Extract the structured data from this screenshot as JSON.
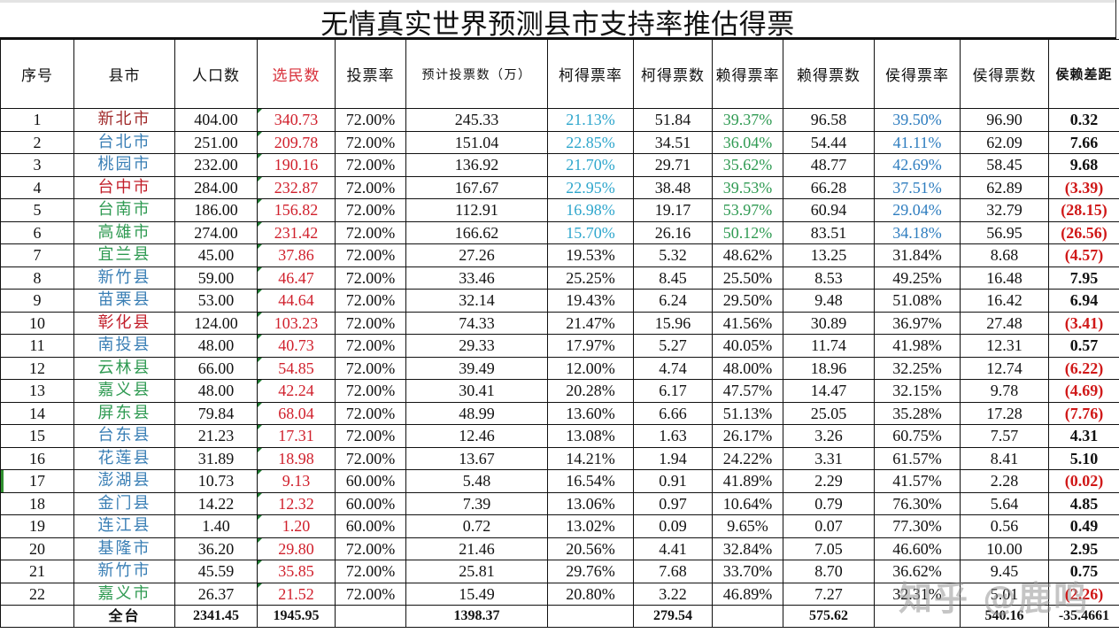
{
  "title": "无情真实世界预测县市支持率推估得票",
  "headers": [
    "序号",
    "县市",
    "人口数",
    "选民数",
    "投票率",
    "预计投票数（万）",
    "柯得票率",
    "柯得票数",
    "赖得票率",
    "赖得票数",
    "侯得票率",
    "侯得票数",
    "侯赖差距"
  ],
  "colors": {
    "ko_rate": "#2ea6cc",
    "lai_rate": "#2f9a52",
    "hou_rate": "#2e7dbf",
    "voters": "#d0202c",
    "negative_diff": "#d01818"
  },
  "rows": [
    {
      "seq": "1",
      "name": "新北市",
      "name_color": "maroon",
      "pop": "404.00",
      "voters": "340.73",
      "turnout": "72.00%",
      "votes": "245.33",
      "ko_rate": "21.13%",
      "ko_votes": "51.84",
      "lai_rate": "39.37%",
      "lai_votes": "96.58",
      "hou_rate": "39.50%",
      "hou_votes": "96.90",
      "diff": "0.32",
      "neg": false,
      "colored": true
    },
    {
      "seq": "2",
      "name": "台北市",
      "name_color": "blue",
      "pop": "251.00",
      "voters": "209.78",
      "turnout": "72.00%",
      "votes": "151.04",
      "ko_rate": "22.85%",
      "ko_votes": "34.51",
      "lai_rate": "36.04%",
      "lai_votes": "54.44",
      "hou_rate": "41.11%",
      "hou_votes": "62.09",
      "diff": "7.66",
      "neg": false,
      "colored": true
    },
    {
      "seq": "3",
      "name": "桃园市",
      "name_color": "blue",
      "pop": "232.00",
      "voters": "190.16",
      "turnout": "72.00%",
      "votes": "136.92",
      "ko_rate": "21.70%",
      "ko_votes": "29.71",
      "lai_rate": "35.62%",
      "lai_votes": "48.77",
      "hou_rate": "42.69%",
      "hou_votes": "58.45",
      "diff": "9.68",
      "neg": false,
      "colored": true
    },
    {
      "seq": "4",
      "name": "台中市",
      "name_color": "red",
      "pop": "284.00",
      "voters": "232.87",
      "turnout": "72.00%",
      "votes": "167.67",
      "ko_rate": "22.95%",
      "ko_votes": "38.48",
      "lai_rate": "39.53%",
      "lai_votes": "66.28",
      "hou_rate": "37.51%",
      "hou_votes": "62.89",
      "diff": "(3.39)",
      "neg": true,
      "colored": true
    },
    {
      "seq": "5",
      "name": "台南市",
      "name_color": "green",
      "pop": "186.00",
      "voters": "156.82",
      "turnout": "72.00%",
      "votes": "112.91",
      "ko_rate": "16.98%",
      "ko_votes": "19.17",
      "lai_rate": "53.97%",
      "lai_votes": "60.94",
      "hou_rate": "29.04%",
      "hou_votes": "32.79",
      "diff": "(28.15)",
      "neg": true,
      "colored": true
    },
    {
      "seq": "6",
      "name": "高雄市",
      "name_color": "green",
      "pop": "274.00",
      "voters": "231.42",
      "turnout": "72.00%",
      "votes": "166.62",
      "ko_rate": "15.70%",
      "ko_votes": "26.16",
      "lai_rate": "50.12%",
      "lai_votes": "83.51",
      "hou_rate": "34.18%",
      "hou_votes": "56.95",
      "diff": "(26.56)",
      "neg": true,
      "colored": true
    },
    {
      "seq": "7",
      "name": "宜兰县",
      "name_color": "green",
      "pop": "45.00",
      "voters": "37.86",
      "turnout": "72.00%",
      "votes": "27.26",
      "ko_rate": "19.53%",
      "ko_votes": "5.32",
      "lai_rate": "48.62%",
      "lai_votes": "13.25",
      "hou_rate": "31.84%",
      "hou_votes": "8.68",
      "diff": "(4.57)",
      "neg": true,
      "colored": false
    },
    {
      "seq": "8",
      "name": "新竹县",
      "name_color": "blue",
      "pop": "59.00",
      "voters": "46.47",
      "turnout": "72.00%",
      "votes": "33.46",
      "ko_rate": "25.25%",
      "ko_votes": "8.45",
      "lai_rate": "25.50%",
      "lai_votes": "8.53",
      "hou_rate": "49.25%",
      "hou_votes": "16.48",
      "diff": "7.95",
      "neg": false,
      "colored": false
    },
    {
      "seq": "9",
      "name": "苗栗县",
      "name_color": "blue",
      "pop": "53.00",
      "voters": "44.64",
      "turnout": "72.00%",
      "votes": "32.14",
      "ko_rate": "19.43%",
      "ko_votes": "6.24",
      "lai_rate": "29.50%",
      "lai_votes": "9.48",
      "hou_rate": "51.08%",
      "hou_votes": "16.42",
      "diff": "6.94",
      "neg": false,
      "colored": false
    },
    {
      "seq": "10",
      "name": "彰化县",
      "name_color": "red",
      "pop": "124.00",
      "voters": "103.23",
      "turnout": "72.00%",
      "votes": "74.33",
      "ko_rate": "21.47%",
      "ko_votes": "15.96",
      "lai_rate": "41.56%",
      "lai_votes": "30.89",
      "hou_rate": "36.97%",
      "hou_votes": "27.48",
      "diff": "(3.41)",
      "neg": true,
      "colored": false
    },
    {
      "seq": "11",
      "name": "南投县",
      "name_color": "blue",
      "pop": "48.00",
      "voters": "40.73",
      "turnout": "72.00%",
      "votes": "29.33",
      "ko_rate": "17.97%",
      "ko_votes": "5.27",
      "lai_rate": "40.05%",
      "lai_votes": "11.74",
      "hou_rate": "41.98%",
      "hou_votes": "12.31",
      "diff": "0.57",
      "neg": false,
      "colored": false
    },
    {
      "seq": "12",
      "name": "云林县",
      "name_color": "green",
      "pop": "66.00",
      "voters": "54.85",
      "turnout": "72.00%",
      "votes": "39.49",
      "ko_rate": "12.00%",
      "ko_votes": "4.74",
      "lai_rate": "48.00%",
      "lai_votes": "18.96",
      "hou_rate": "32.25%",
      "hou_votes": "12.74",
      "diff": "(6.22)",
      "neg": true,
      "colored": false
    },
    {
      "seq": "13",
      "name": "嘉义县",
      "name_color": "green",
      "pop": "48.00",
      "voters": "42.24",
      "turnout": "72.00%",
      "votes": "30.41",
      "ko_rate": "20.28%",
      "ko_votes": "6.17",
      "lai_rate": "47.57%",
      "lai_votes": "14.47",
      "hou_rate": "32.15%",
      "hou_votes": "9.78",
      "diff": "(4.69)",
      "neg": true,
      "colored": false
    },
    {
      "seq": "14",
      "name": "屏东县",
      "name_color": "green",
      "pop": "79.84",
      "voters": "68.04",
      "turnout": "72.00%",
      "votes": "48.99",
      "ko_rate": "13.60%",
      "ko_votes": "6.66",
      "lai_rate": "51.13%",
      "lai_votes": "25.05",
      "hou_rate": "35.28%",
      "hou_votes": "17.28",
      "diff": "(7.76)",
      "neg": true,
      "colored": false
    },
    {
      "seq": "15",
      "name": "台东县",
      "name_color": "blue",
      "pop": "21.23",
      "voters": "17.31",
      "turnout": "72.00%",
      "votes": "12.46",
      "ko_rate": "13.08%",
      "ko_votes": "1.63",
      "lai_rate": "26.17%",
      "lai_votes": "3.26",
      "hou_rate": "60.75%",
      "hou_votes": "7.57",
      "diff": "4.31",
      "neg": false,
      "colored": false
    },
    {
      "seq": "16",
      "name": "花莲县",
      "name_color": "blue",
      "pop": "31.89",
      "voters": "18.98",
      "turnout": "72.00%",
      "votes": "13.67",
      "ko_rate": "14.21%",
      "ko_votes": "1.94",
      "lai_rate": "24.22%",
      "lai_votes": "3.31",
      "hou_rate": "61.57%",
      "hou_votes": "8.41",
      "diff": "5.10",
      "neg": false,
      "colored": false
    },
    {
      "seq": "17",
      "name": "澎湖县",
      "name_color": "blue",
      "pop": "10.73",
      "voters": "9.13",
      "turnout": "60.00%",
      "votes": "5.48",
      "ko_rate": "16.54%",
      "ko_votes": "0.91",
      "lai_rate": "41.89%",
      "lai_votes": "2.29",
      "hou_rate": "41.57%",
      "hou_votes": "2.28",
      "diff": "(0.02)",
      "neg": true,
      "colored": false,
      "selected": true
    },
    {
      "seq": "18",
      "name": "金门县",
      "name_color": "blue",
      "pop": "14.22",
      "voters": "12.32",
      "turnout": "60.00%",
      "votes": "7.39",
      "ko_rate": "13.06%",
      "ko_votes": "0.97",
      "lai_rate": "10.64%",
      "lai_votes": "0.79",
      "hou_rate": "76.30%",
      "hou_votes": "5.64",
      "diff": "4.85",
      "neg": false,
      "colored": false
    },
    {
      "seq": "19",
      "name": "连江县",
      "name_color": "blue",
      "pop": "1.40",
      "voters": "1.20",
      "turnout": "60.00%",
      "votes": "0.72",
      "ko_rate": "13.02%",
      "ko_votes": "0.09",
      "lai_rate": "9.65%",
      "lai_votes": "0.07",
      "hou_rate": "77.30%",
      "hou_votes": "0.56",
      "diff": "0.49",
      "neg": false,
      "colored": false
    },
    {
      "seq": "20",
      "name": "基隆市",
      "name_color": "blue",
      "pop": "36.20",
      "voters": "29.80",
      "turnout": "72.00%",
      "votes": "21.46",
      "ko_rate": "20.56%",
      "ko_votes": "4.41",
      "lai_rate": "32.84%",
      "lai_votes": "7.05",
      "hou_rate": "46.60%",
      "hou_votes": "10.00",
      "diff": "2.95",
      "neg": false,
      "colored": false
    },
    {
      "seq": "21",
      "name": "新竹市",
      "name_color": "blue",
      "pop": "45.59",
      "voters": "35.85",
      "turnout": "72.00%",
      "votes": "25.81",
      "ko_rate": "29.76%",
      "ko_votes": "7.68",
      "lai_rate": "33.70%",
      "lai_votes": "8.70",
      "hou_rate": "36.62%",
      "hou_votes": "9.45",
      "diff": "0.75",
      "neg": false,
      "colored": false
    },
    {
      "seq": "22",
      "name": "嘉义市",
      "name_color": "green",
      "pop": "26.37",
      "voters": "21.52",
      "turnout": "72.00%",
      "votes": "15.49",
      "ko_rate": "20.80%",
      "ko_votes": "3.22",
      "lai_rate": "46.89%",
      "lai_votes": "7.27",
      "hou_rate": "32.31%",
      "hou_votes": "5.01",
      "diff": "(2.26)",
      "neg": true,
      "colored": false
    }
  ],
  "total": {
    "label": "全台",
    "pop": "2341.45",
    "voters": "1945.95",
    "votes": "1398.37",
    "ko_votes": "279.54",
    "lai_votes": "575.62",
    "hou_votes": "540.16",
    "diff": "-35.4661"
  },
  "watermark": "知乎 @鹿鸣"
}
